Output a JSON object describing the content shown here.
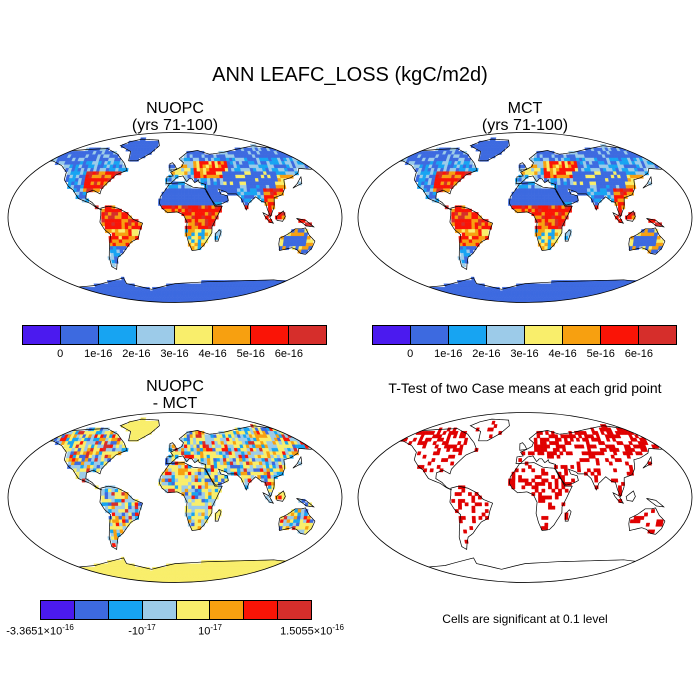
{
  "title": "ANN LEAFC_LOSS (kgC/m2d)",
  "panels": {
    "nuopc": {
      "title_line1": "NUOPC",
      "title_line2": "(yrs 71-100)"
    },
    "mct": {
      "title_line1": "MCT",
      "title_line2": "(yrs 71-100)"
    },
    "diff": {
      "title_line1": "NUOPC",
      "title_line2": "- MCT"
    },
    "ttest": {
      "title": "T-Test of two Case means at each grid point",
      "note": "Cells are significant at 0.1 level"
    }
  },
  "colorbar_top": {
    "colors": [
      "#4b1aef",
      "#3d6ae0",
      "#17a4f2",
      "#9ccbe9",
      "#f9ee6b",
      "#f7a010",
      "#fa1406",
      "#d62e2b"
    ],
    "labels": [
      "0",
      "1e-16",
      "2e-16",
      "3e-16",
      "4e-16",
      "5e-16",
      "6e-16"
    ]
  },
  "colorbar_diff": {
    "colors": [
      "#4b1aef",
      "#3d6ae0",
      "#17a4f2",
      "#9ccbe9",
      "#f9ee6b",
      "#f7a010",
      "#fa1406",
      "#d62e2b"
    ],
    "labels": [
      {
        "mant": "-3.3651×10",
        "exp": "-16"
      },
      {
        "mant": "-10",
        "exp": "-17"
      },
      {
        "mant": "10",
        "exp": "-17"
      },
      {
        "mant": "1.5055×10",
        "exp": "-16"
      }
    ]
  },
  "significance_color": "#e00000",
  "ocean_color": "#ffffff"
}
